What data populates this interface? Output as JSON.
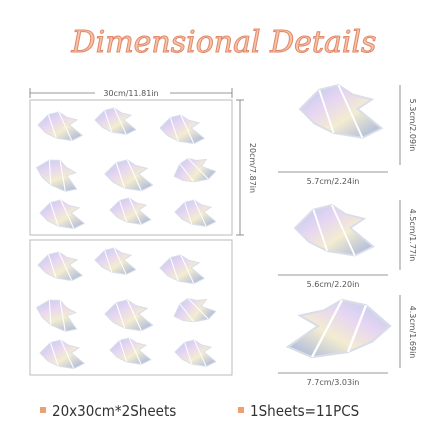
{
  "header": {
    "title": "Dimensional Details"
  },
  "sheet": {
    "width_label": "30cm/11.81in",
    "height_label": "20cm/7.87in"
  },
  "birds": [
    {
      "width_label": "5.7cm/2.24in",
      "height_label": "5.3cm/2.09in"
    },
    {
      "width_label": "5.6cm/2.20in",
      "height_label": "4.5cm/1.77in"
    },
    {
      "width_label": "7.7cm/3.03in",
      "height_label": "4.3cm/1.69in"
    }
  ],
  "footer": {
    "size": "20x30cm*2Sheets",
    "count": "1Sheets=11PCS"
  }
}
